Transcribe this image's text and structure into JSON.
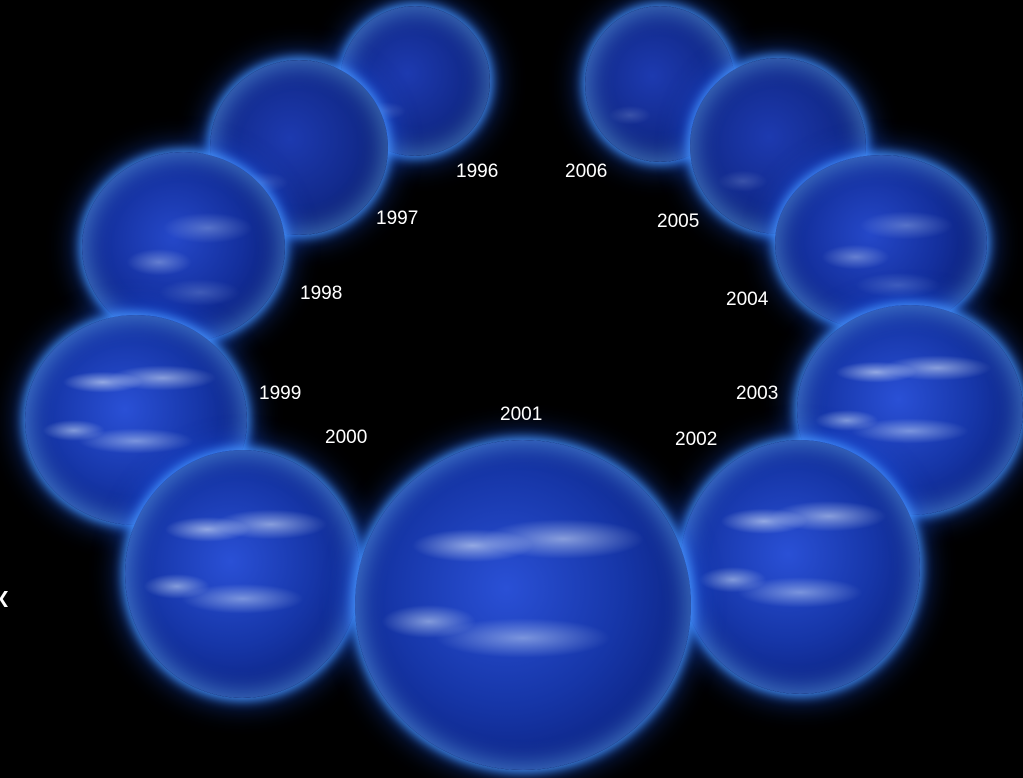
{
  "image": {
    "background_color": "#000000",
    "sun_color": "#1a3fc4",
    "corona_color": "#5fb0ff",
    "label_color": "#ffffff",
    "subject": "solar-disks-ring",
    "edge_icon": "arrow-icon"
  },
  "labels": {
    "y1996": "1996",
    "y1997": "1997",
    "y1998": "1998",
    "y1999": "1999",
    "y2000": "2000",
    "y2001": "2001",
    "y2002": "2002",
    "y2003": "2003",
    "y2004": "2004",
    "y2005": "2005",
    "y2006": "2006"
  }
}
